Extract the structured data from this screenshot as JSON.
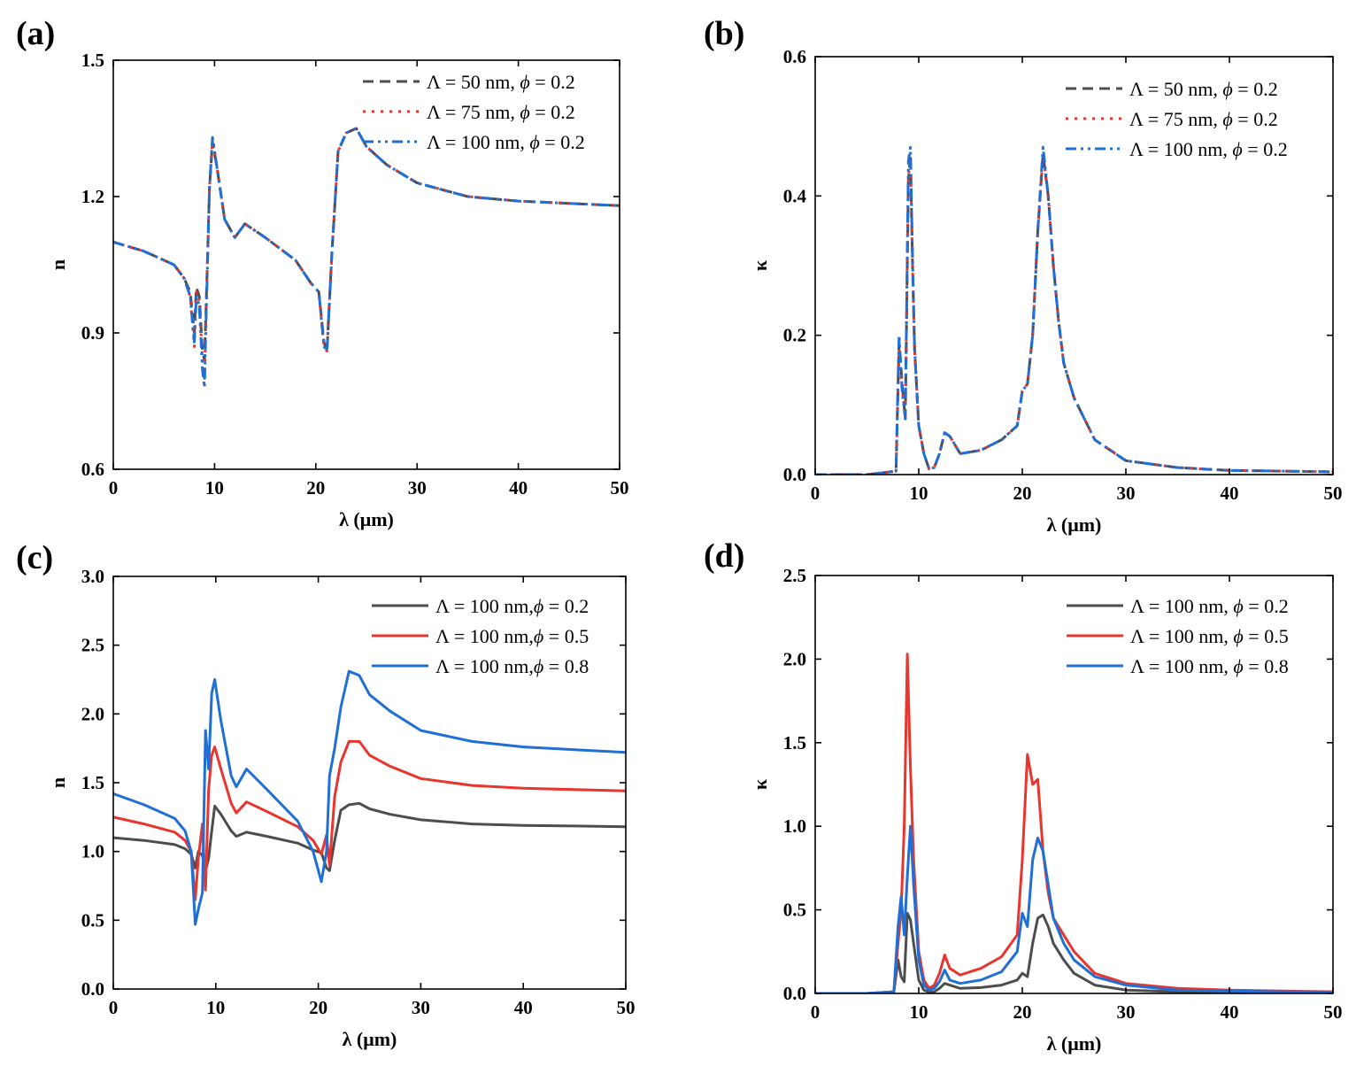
{
  "chart_data": [
    {
      "panel": "(a)",
      "type": "line",
      "xlabel": "λ (μm)",
      "ylabel": "n",
      "xlim": [
        0,
        50
      ],
      "ylim": [
        0.6,
        1.5
      ],
      "xticks": [
        "0",
        "10",
        "20",
        "30",
        "40",
        "50"
      ],
      "yticks": [
        "0.6",
        "0.9",
        "1.2",
        "1.5"
      ],
      "legend": "top-right",
      "series": [
        {
          "legend_main": "Λ = 50 nm, ",
          "legend_phi": "ϕ",
          "legend_val": " = 0.2",
          "color": "#4d4d4d",
          "dash": "12,7",
          "width": 3,
          "x": [
            0,
            3,
            6,
            7,
            7.6,
            8,
            8.2,
            8.5,
            8.8,
            9,
            9.2,
            9.5,
            9.8,
            10.2,
            11,
            12,
            13,
            15,
            18,
            19.5,
            20.3,
            20.8,
            21.1,
            21.6,
            22.2,
            23,
            24,
            25,
            27,
            30,
            35,
            40,
            45,
            50
          ],
          "y": [
            1.1,
            1.08,
            1.05,
            1.02,
            0.99,
            0.9,
            1.0,
            0.98,
            0.86,
            0.84,
            0.98,
            1.22,
            1.32,
            1.27,
            1.15,
            1.11,
            1.14,
            1.11,
            1.06,
            1.01,
            0.99,
            0.88,
            0.86,
            1.08,
            1.3,
            1.34,
            1.35,
            1.31,
            1.27,
            1.23,
            1.2,
            1.19,
            1.185,
            1.18
          ]
        },
        {
          "legend_main": "Λ = 75 nm, ",
          "legend_phi": "ϕ",
          "legend_val": " = 0.2",
          "color": "#e8352e",
          "dash": "3,7",
          "width": 3,
          "x": [
            0,
            3,
            6,
            7,
            7.6,
            8,
            8.2,
            8.5,
            8.8,
            9,
            9.2,
            9.5,
            9.8,
            10.2,
            11,
            12,
            13,
            15,
            18,
            19.5,
            20.3,
            20.8,
            21.1,
            21.6,
            22.2,
            23,
            24,
            25,
            27,
            30,
            35,
            40,
            45,
            50
          ],
          "y": [
            1.1,
            1.08,
            1.05,
            1.02,
            0.98,
            0.87,
            0.99,
            0.97,
            0.84,
            0.8,
            0.97,
            1.22,
            1.33,
            1.27,
            1.15,
            1.11,
            1.14,
            1.11,
            1.06,
            1.01,
            0.99,
            0.87,
            0.86,
            1.08,
            1.3,
            1.34,
            1.35,
            1.31,
            1.27,
            1.23,
            1.2,
            1.19,
            1.185,
            1.18
          ]
        },
        {
          "legend_main": "Λ = 100 nm, ",
          "legend_phi": "ϕ",
          "legend_val": " = 0.2",
          "color": "#1f6fd6",
          "dash": "12,5,3,5,3,5",
          "width": 3,
          "x": [
            0,
            3,
            6,
            7,
            7.6,
            8,
            8.2,
            8.5,
            8.8,
            9,
            9.2,
            9.5,
            9.8,
            10.2,
            11,
            12,
            13,
            15,
            18,
            19.5,
            20.3,
            20.8,
            21.1,
            21.6,
            22.2,
            23,
            24,
            25,
            27,
            30,
            35,
            40,
            45,
            50
          ],
          "y": [
            1.1,
            1.08,
            1.05,
            1.02,
            0.98,
            0.88,
            0.98,
            0.96,
            0.82,
            0.78,
            0.96,
            1.22,
            1.33,
            1.27,
            1.15,
            1.11,
            1.14,
            1.11,
            1.06,
            1.01,
            0.99,
            0.87,
            0.86,
            1.08,
            1.3,
            1.34,
            1.35,
            1.31,
            1.27,
            1.23,
            1.2,
            1.19,
            1.185,
            1.18
          ]
        }
      ]
    },
    {
      "panel": "(b)",
      "type": "line",
      "xlabel": "λ (μm)",
      "ylabel": "κ",
      "xlim": [
        0,
        50
      ],
      "ylim": [
        0,
        0.6
      ],
      "xticks": [
        "0",
        "10",
        "20",
        "30",
        "40",
        "50"
      ],
      "yticks": [
        "0.0",
        "0.2",
        "0.4",
        "0.6"
      ],
      "legend": "top-right",
      "series": [
        {
          "legend_main": "Λ = 50 nm, ",
          "legend_phi": "ϕ",
          "legend_val": " = 0.2",
          "color": "#4d4d4d",
          "dash": "12,7",
          "width": 3,
          "x": [
            0,
            5,
            7.8,
            8.1,
            8.4,
            8.7,
            9.0,
            9.2,
            9.4,
            9.6,
            10,
            10.5,
            11,
            11.5,
            12,
            12.5,
            13,
            14,
            16,
            18,
            19.5,
            20,
            20.5,
            21,
            21.5,
            22,
            22.5,
            23,
            23.5,
            24,
            25,
            27,
            30,
            35,
            40,
            45,
            50
          ],
          "y": [
            0,
            0,
            0.005,
            0.19,
            0.13,
            0.08,
            0.42,
            0.46,
            0.3,
            0.18,
            0.07,
            0.03,
            0.008,
            0.01,
            0.03,
            0.06,
            0.055,
            0.03,
            0.035,
            0.05,
            0.07,
            0.12,
            0.13,
            0.2,
            0.35,
            0.46,
            0.4,
            0.3,
            0.22,
            0.16,
            0.11,
            0.05,
            0.02,
            0.01,
            0.006,
            0.005,
            0.004
          ]
        },
        {
          "legend_main": "Λ = 75 nm, ",
          "legend_phi": "ϕ",
          "legend_val": " = 0.2",
          "color": "#e8352e",
          "dash": "3,7",
          "width": 3,
          "x": [
            0,
            5,
            7.8,
            8.1,
            8.4,
            8.7,
            9.0,
            9.2,
            9.4,
            9.6,
            10,
            10.5,
            11,
            11.5,
            12,
            12.5,
            13,
            14,
            16,
            18,
            19.5,
            20,
            20.5,
            21,
            21.5,
            22,
            22.5,
            23,
            23.5,
            24,
            25,
            27,
            30,
            35,
            40,
            45,
            50
          ],
          "y": [
            0,
            0,
            0.005,
            0.18,
            0.12,
            0.09,
            0.43,
            0.45,
            0.3,
            0.18,
            0.07,
            0.03,
            0.008,
            0.01,
            0.03,
            0.06,
            0.055,
            0.03,
            0.035,
            0.05,
            0.07,
            0.12,
            0.13,
            0.2,
            0.35,
            0.46,
            0.4,
            0.3,
            0.22,
            0.16,
            0.11,
            0.05,
            0.02,
            0.01,
            0.006,
            0.005,
            0.004
          ]
        },
        {
          "legend_main": "Λ = 100 nm, ",
          "legend_phi": "ϕ",
          "legend_val": " = 0.2",
          "color": "#1f6fd6",
          "dash": "12,5,3,5,3,5",
          "width": 3,
          "x": [
            0,
            5,
            7.8,
            8.1,
            8.4,
            8.7,
            9.0,
            9.2,
            9.4,
            9.6,
            10,
            10.5,
            11,
            11.5,
            12,
            12.5,
            13,
            14,
            16,
            18,
            19.5,
            20,
            20.5,
            21,
            21.5,
            22,
            22.5,
            23,
            23.5,
            24,
            25,
            27,
            30,
            35,
            40,
            45,
            50
          ],
          "y": [
            0,
            0,
            0.005,
            0.2,
            0.12,
            0.08,
            0.45,
            0.47,
            0.31,
            0.18,
            0.07,
            0.03,
            0.008,
            0.01,
            0.03,
            0.06,
            0.055,
            0.03,
            0.035,
            0.05,
            0.07,
            0.12,
            0.13,
            0.2,
            0.35,
            0.47,
            0.4,
            0.3,
            0.22,
            0.16,
            0.11,
            0.05,
            0.02,
            0.01,
            0.006,
            0.005,
            0.004
          ]
        }
      ]
    },
    {
      "panel": "(c)",
      "type": "line",
      "xlabel": "λ (μm)",
      "ylabel": "n",
      "xlim": [
        0,
        50
      ],
      "ylim": [
        0,
        3.0
      ],
      "xticks": [
        "0",
        "10",
        "20",
        "30",
        "40",
        "50"
      ],
      "yticks": [
        "0.0",
        "0.5",
        "1.0",
        "1.5",
        "2.0",
        "2.5",
        "3.0"
      ],
      "legend": "top-right",
      "series": [
        {
          "legend_main": "Λ = 100 nm,",
          "legend_phi": "ϕ",
          "legend_val": " = 0.2",
          "color": "#4d4d4d",
          "dash": "",
          "width": 3,
          "x": [
            0,
            3,
            6,
            7,
            7.6,
            8,
            8.3,
            8.7,
            9,
            9.3,
            9.6,
            9.9,
            10.5,
            11.5,
            12,
            13,
            15,
            18,
            19.5,
            20.3,
            20.8,
            21.1,
            21.6,
            22.2,
            23,
            24,
            25,
            27,
            30,
            35,
            40,
            45,
            50
          ],
          "y": [
            1.1,
            1.08,
            1.05,
            1.02,
            0.98,
            0.88,
            1.0,
            0.97,
            0.86,
            0.95,
            1.15,
            1.33,
            1.27,
            1.15,
            1.11,
            1.14,
            1.11,
            1.06,
            1.01,
            0.99,
            0.88,
            0.86,
            1.08,
            1.3,
            1.34,
            1.35,
            1.31,
            1.27,
            1.23,
            1.2,
            1.19,
            1.185,
            1.18
          ]
        },
        {
          "legend_main": "Λ = 100 nm,",
          "legend_phi": "ϕ",
          "legend_val": " = 0.5",
          "color": "#e8352e",
          "dash": "",
          "width": 3,
          "x": [
            0,
            3,
            6,
            7,
            7.6,
            8,
            8.3,
            8.7,
            9,
            9.3,
            9.6,
            9.9,
            10.5,
            11.5,
            12,
            13,
            15,
            18,
            19.5,
            20.3,
            20.8,
            21.1,
            21.6,
            22.2,
            23,
            24,
            25,
            27,
            30,
            35,
            40,
            45,
            50
          ],
          "y": [
            1.25,
            1.2,
            1.14,
            1.08,
            1.0,
            0.65,
            0.95,
            1.2,
            0.72,
            1.45,
            1.7,
            1.76,
            1.6,
            1.35,
            1.28,
            1.36,
            1.29,
            1.18,
            1.08,
            0.98,
            1.12,
            0.9,
            1.4,
            1.65,
            1.8,
            1.8,
            1.7,
            1.62,
            1.53,
            1.48,
            1.46,
            1.45,
            1.44
          ]
        },
        {
          "legend_main": "Λ = 100 nm,",
          "legend_phi": "ϕ",
          "legend_val": " = 0.8",
          "color": "#1f6fd6",
          "dash": "",
          "width": 3,
          "x": [
            0,
            3,
            6,
            7,
            7.6,
            8,
            8.3,
            8.7,
            9,
            9.3,
            9.6,
            9.9,
            10.5,
            11.5,
            12,
            13,
            15,
            18,
            19.5,
            20.3,
            20.8,
            21.1,
            21.6,
            22.2,
            23,
            24,
            25,
            27,
            30,
            35,
            40,
            45,
            50
          ],
          "y": [
            1.42,
            1.34,
            1.24,
            1.15,
            1.0,
            0.47,
            0.58,
            0.7,
            1.88,
            1.6,
            2.15,
            2.25,
            1.95,
            1.55,
            1.47,
            1.6,
            1.45,
            1.22,
            1.0,
            0.78,
            1.0,
            1.55,
            1.75,
            2.05,
            2.31,
            2.28,
            2.14,
            2.02,
            1.88,
            1.8,
            1.76,
            1.74,
            1.72
          ]
        }
      ]
    },
    {
      "panel": "(d)",
      "type": "line",
      "xlabel": "λ (μm)",
      "ylabel": "κ",
      "xlim": [
        0,
        50
      ],
      "ylim": [
        0,
        2.5
      ],
      "xticks": [
        "0",
        "10",
        "20",
        "30",
        "40",
        "50"
      ],
      "yticks": [
        "0.0",
        "0.5",
        "1.0",
        "1.5",
        "2.0",
        "2.5"
      ],
      "legend": "top-right",
      "series": [
        {
          "legend_main": "Λ = 100 nm, ",
          "legend_phi": "ϕ",
          "legend_val": " = 0.2",
          "color": "#4d4d4d",
          "dash": "",
          "width": 3,
          "x": [
            0,
            5,
            7.6,
            8.0,
            8.3,
            8.6,
            8.9,
            9.2,
            9.5,
            10,
            10.5,
            11,
            11.5,
            12,
            12.5,
            13,
            14,
            16,
            18,
            19.5,
            20,
            20.5,
            21,
            21.5,
            22,
            22.5,
            23,
            24,
            25,
            27,
            30,
            35,
            40,
            45,
            50
          ],
          "y": [
            0,
            0,
            0.01,
            0.2,
            0.1,
            0.07,
            0.48,
            0.44,
            0.3,
            0.08,
            0.02,
            0.008,
            0.01,
            0.03,
            0.06,
            0.05,
            0.03,
            0.035,
            0.05,
            0.08,
            0.12,
            0.1,
            0.3,
            0.45,
            0.47,
            0.4,
            0.3,
            0.2,
            0.12,
            0.05,
            0.02,
            0.01,
            0.007,
            0.006,
            0.005
          ]
        },
        {
          "legend_main": "Λ = 100 nm, ",
          "legend_phi": "ϕ",
          "legend_val": " = 0.5",
          "color": "#e8352e",
          "dash": "",
          "width": 3,
          "x": [
            0,
            5,
            7.6,
            8.0,
            8.3,
            8.6,
            8.9,
            9.2,
            9.5,
            10,
            10.5,
            11,
            11.5,
            12,
            12.5,
            13,
            14,
            16,
            18,
            19.5,
            20,
            20.5,
            21,
            21.5,
            22,
            22.5,
            23,
            24,
            25,
            27,
            30,
            35,
            40,
            45,
            50
          ],
          "y": [
            0,
            0,
            0.01,
            0.3,
            0.5,
            1.0,
            2.03,
            1.35,
            0.8,
            0.25,
            0.08,
            0.03,
            0.05,
            0.12,
            0.23,
            0.15,
            0.11,
            0.15,
            0.22,
            0.35,
            0.8,
            1.43,
            1.25,
            1.28,
            0.85,
            0.6,
            0.45,
            0.35,
            0.25,
            0.12,
            0.06,
            0.03,
            0.02,
            0.015,
            0.01
          ]
        },
        {
          "legend_main": "Λ = 100 nm, ",
          "legend_phi": "ϕ",
          "legend_val": " = 0.8",
          "color": "#1f6fd6",
          "dash": "",
          "width": 3,
          "x": [
            0,
            5,
            7.6,
            8.0,
            8.3,
            8.6,
            8.9,
            9.2,
            9.5,
            10,
            10.5,
            11,
            11.5,
            12,
            12.5,
            13,
            14,
            16,
            18,
            19.5,
            20,
            20.5,
            21,
            21.5,
            22,
            22.5,
            23,
            24,
            25,
            27,
            30,
            35,
            40,
            45,
            50
          ],
          "y": [
            0,
            0,
            0.01,
            0.4,
            0.58,
            0.35,
            0.7,
            1.0,
            0.65,
            0.2,
            0.05,
            0.02,
            0.03,
            0.07,
            0.14,
            0.08,
            0.06,
            0.08,
            0.13,
            0.25,
            0.48,
            0.4,
            0.8,
            0.93,
            0.85,
            0.65,
            0.45,
            0.3,
            0.2,
            0.1,
            0.05,
            0.02,
            0.015,
            0.01,
            0.008
          ]
        }
      ]
    }
  ]
}
